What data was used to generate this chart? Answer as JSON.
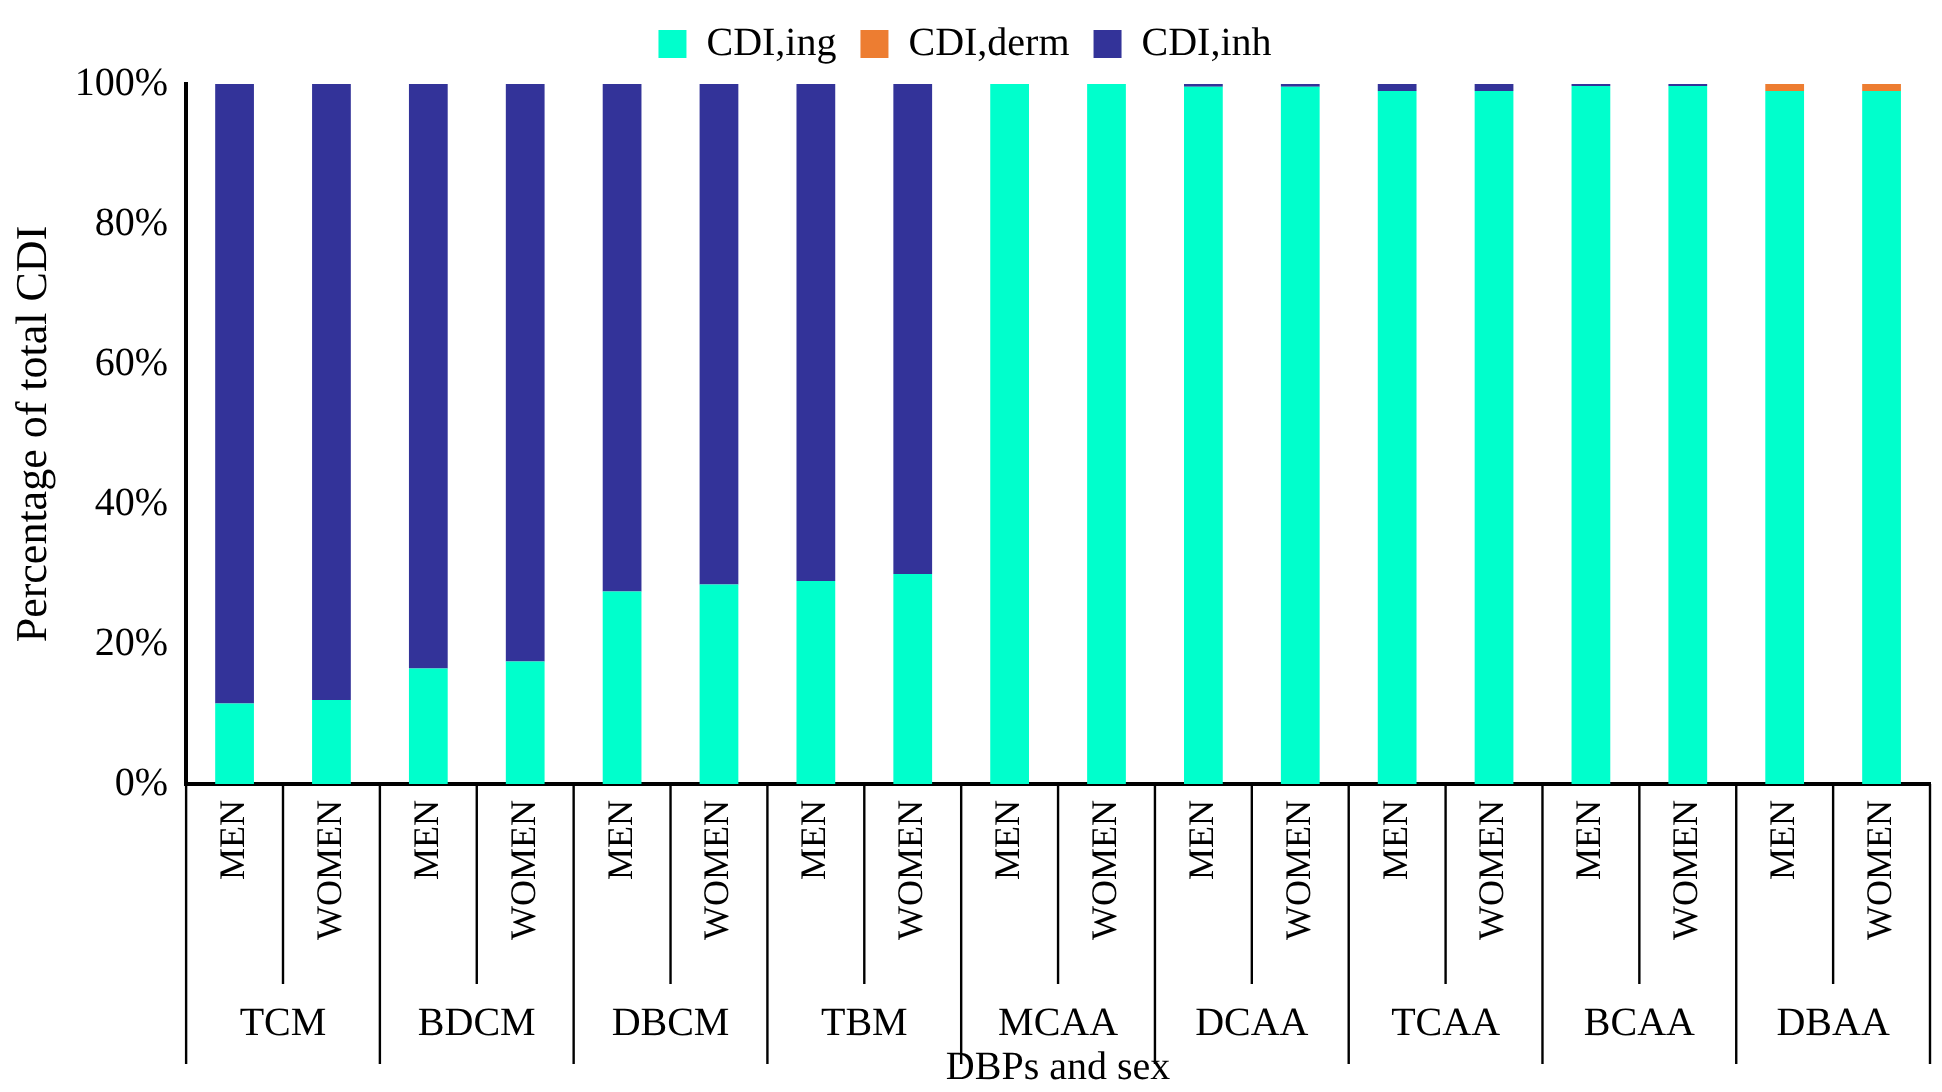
{
  "chart_data": {
    "type": "bar",
    "stacked": true,
    "xlabel": "DBPs and sex",
    "ylabel": "Percentage of total CDI",
    "categories": [
      "MEN",
      "WOMEN",
      "MEN",
      "WOMEN",
      "MEN",
      "WOMEN",
      "MEN",
      "WOMEN",
      "MEN",
      "WOMEN",
      "MEN",
      "WOMEN",
      "MEN",
      "WOMEN",
      "MEN",
      "WOMEN",
      "MEN",
      "WOMEN"
    ],
    "annotations": [
      "TCM",
      "BDCM",
      "DBCM",
      "TBM",
      "MCAA",
      "DCAA",
      "TCAA",
      "BCAA",
      "DBAA"
    ],
    "series": [
      {
        "name": "CDI,ing",
        "color": "#00ffcc",
        "values": [
          11.5,
          12,
          16.5,
          17.5,
          27.5,
          28.5,
          29,
          30,
          100,
          100,
          99.6,
          99.6,
          99,
          99,
          99.7,
          99.7,
          99,
          99
        ]
      },
      {
        "name": "CDI,derm",
        "color": "#ed7d31",
        "values": [
          null,
          null,
          null,
          null,
          null,
          null,
          null,
          null,
          null,
          null,
          null,
          null,
          null,
          null,
          null,
          null,
          1,
          1
        ]
      },
      {
        "name": "CDI,inh",
        "color": "#333399",
        "values": [
          88.5,
          88,
          83.5,
          82.5,
          72.5,
          71.5,
          71,
          70,
          null,
          null,
          0.4,
          0.4,
          1,
          1,
          0.3,
          0.3,
          null,
          null
        ]
      }
    ],
    "ylim": [
      0,
      100
    ],
    "yticks": [
      {
        "value": 0,
        "label": "0%"
      },
      {
        "value": 20,
        "label": "20%"
      },
      {
        "value": 40,
        "label": "40%"
      },
      {
        "value": 60,
        "label": "60%"
      },
      {
        "value": 80,
        "label": "80%"
      },
      {
        "value": 100,
        "label": "100%"
      }
    ],
    "grid": false,
    "legend": "top"
  }
}
